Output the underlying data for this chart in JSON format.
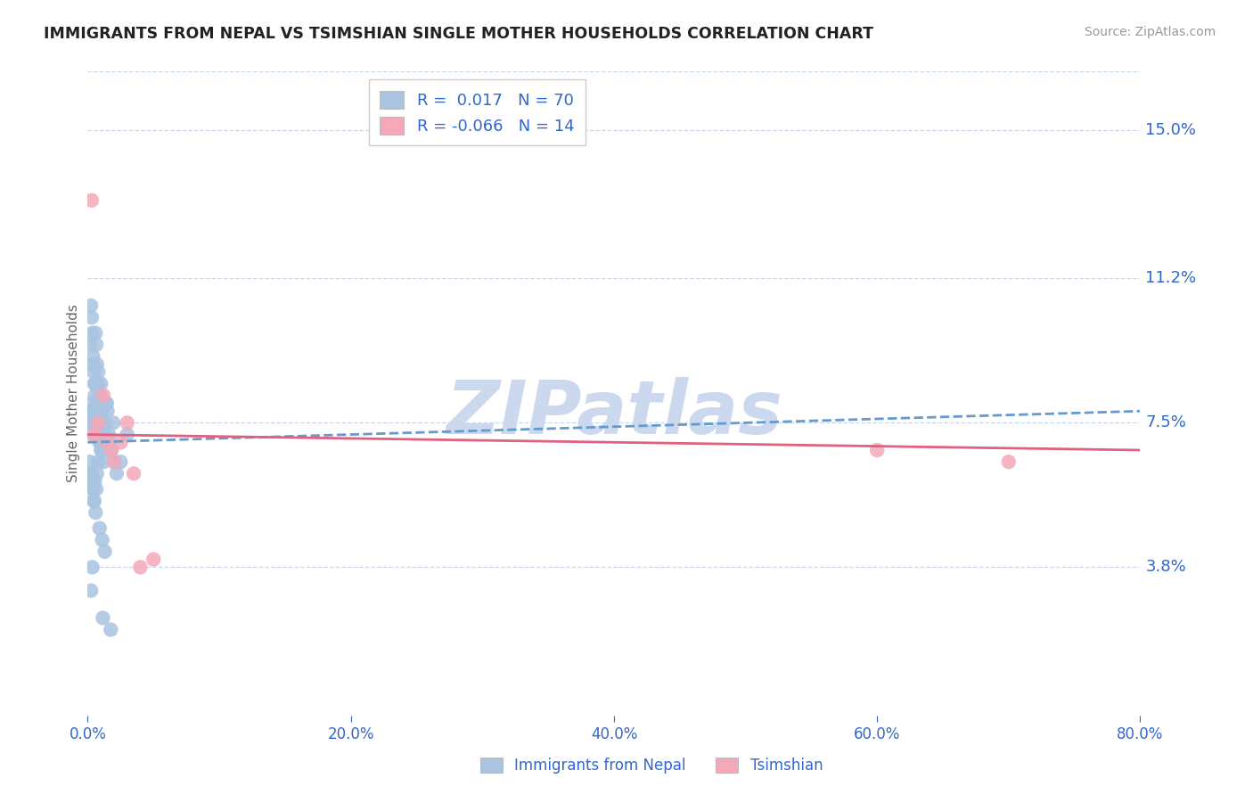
{
  "title": "IMMIGRANTS FROM NEPAL VS TSIMSHIAN SINGLE MOTHER HOUSEHOLDS CORRELATION CHART",
  "source": "Source: ZipAtlas.com",
  "ylabel": "Single Mother Households",
  "xlim": [
    0.0,
    80.0
  ],
  "ylim": [
    0.0,
    16.5
  ],
  "ytick_vals": [
    3.8,
    7.5,
    11.2,
    15.0
  ],
  "xtick_vals": [
    0.0,
    20.0,
    40.0,
    60.0,
    80.0
  ],
  "nepal_R": 0.017,
  "nepal_N": 70,
  "tsimshian_R": -0.066,
  "tsimshian_N": 14,
  "nepal_color": "#a8c4e0",
  "tsimshian_color": "#f4a8b8",
  "nepal_line_color": "#6699cc",
  "tsimshian_line_color": "#e06080",
  "bg_color": "#ffffff",
  "grid_color": "#c8d8e8",
  "title_color": "#222222",
  "label_color": "#3366cc",
  "watermark": "ZIPatlas",
  "watermark_color": "#ccd8ee",
  "nepal_x": [
    0.1,
    0.15,
    0.2,
    0.25,
    0.3,
    0.35,
    0.4,
    0.45,
    0.5,
    0.55,
    0.6,
    0.65,
    0.7,
    0.75,
    0.8,
    0.9,
    1.0,
    1.1,
    1.2,
    1.3,
    1.4,
    1.5,
    1.6,
    1.7,
    1.8,
    2.0,
    2.2,
    2.5,
    0.3,
    0.5,
    0.7,
    0.9,
    1.1,
    0.4,
    0.6,
    0.8,
    1.0,
    0.2,
    0.3,
    0.4,
    0.5,
    0.6,
    0.7,
    0.8,
    1.0,
    1.2,
    0.9,
    1.1,
    1.3,
    0.35,
    0.55,
    0.75,
    0.95,
    1.45,
    1.95,
    0.45,
    0.65,
    0.85,
    1.05,
    3.0,
    0.25,
    0.35,
    1.15,
    1.75,
    0.15,
    0.25,
    0.35,
    0.45,
    0.55,
    0.65
  ],
  "nepal_y": [
    7.5,
    8.0,
    9.5,
    10.5,
    10.2,
    9.8,
    9.2,
    8.8,
    8.5,
    8.2,
    9.8,
    9.5,
    9.0,
    8.5,
    8.8,
    8.2,
    8.5,
    7.8,
    7.2,
    7.5,
    8.0,
    7.8,
    7.2,
    7.0,
    6.8,
    6.5,
    6.2,
    6.5,
    7.8,
    7.5,
    7.2,
    7.0,
    6.8,
    9.0,
    8.5,
    7.5,
    7.8,
    6.2,
    6.0,
    5.8,
    5.5,
    5.2,
    6.2,
    6.5,
    6.8,
    6.5,
    4.8,
    4.5,
    4.2,
    7.2,
    7.5,
    8.0,
    8.2,
    8.0,
    7.5,
    7.8,
    7.2,
    7.5,
    7.0,
    7.2,
    3.2,
    3.8,
    2.5,
    2.2,
    6.5,
    6.2,
    5.8,
    5.5,
    6.0,
    5.8
  ],
  "tsimshian_x": [
    0.3,
    0.8,
    1.2,
    1.8,
    2.5,
    3.0,
    4.0,
    5.0,
    0.5,
    1.5,
    2.0,
    3.5,
    60.0,
    70.0
  ],
  "tsimshian_y": [
    13.2,
    7.5,
    8.2,
    6.8,
    7.0,
    7.5,
    3.8,
    4.0,
    7.2,
    7.0,
    6.5,
    6.2,
    6.8,
    6.5
  ],
  "nepal_trend_start_y": 7.0,
  "nepal_trend_end_y": 7.8,
  "tsimshian_trend_start_y": 7.2,
  "tsimshian_trend_end_y": 6.8
}
